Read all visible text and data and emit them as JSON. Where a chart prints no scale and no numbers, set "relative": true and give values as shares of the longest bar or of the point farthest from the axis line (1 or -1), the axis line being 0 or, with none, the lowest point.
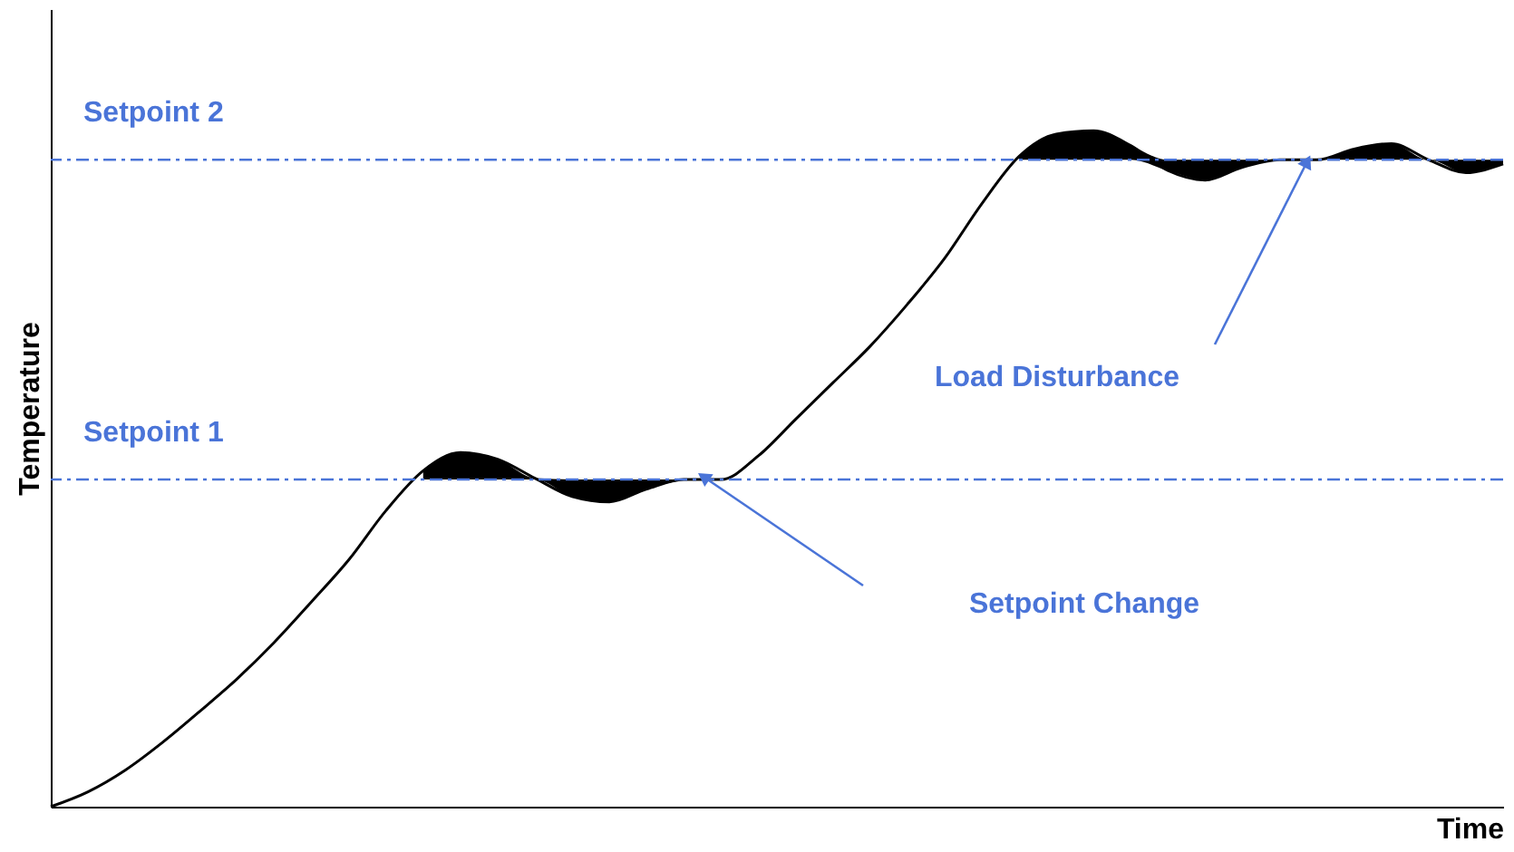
{
  "chart_data": {
    "type": "line",
    "relative": true,
    "xlabel": "Time",
    "ylabel": "Temperature",
    "categories": [
      null,
      null,
      null,
      null,
      null,
      null,
      null,
      null,
      null,
      null,
      null,
      null,
      null,
      null,
      null,
      null,
      null,
      null,
      null,
      null,
      null,
      null,
      null,
      null,
      null,
      null,
      null,
      null,
      null,
      null,
      null,
      null,
      null,
      null,
      null,
      null,
      null,
      null,
      null,
      null
    ],
    "series": [
      {
        "color": "#000000",
        "values": [
          0,
          0.022,
          0.054,
          0.095,
          0.141,
          0.189,
          0.243,
          0.303,
          0.365,
          0.438,
          0.497,
          0.524,
          0.514,
          0.486,
          0.459,
          0.451,
          0.47,
          0.484,
          0.484,
          0.519,
          0.573,
          0.627,
          0.681,
          0.743,
          0.811,
          0.892,
          0.962,
          0.995,
          1,
          0.978,
          0.941,
          0.927,
          0.946,
          0.957,
          0.957,
          0.973,
          0.981,
          0.957,
          0.938,
          0.951
        ],
        "lower": [
          null,
          null,
          null,
          null,
          null,
          null,
          null,
          null,
          null,
          null,
          0.484,
          0.484,
          0.484,
          0.484,
          0.459,
          0.451,
          0.47,
          0.484,
          null,
          null,
          null,
          null,
          null,
          null,
          null,
          null,
          0.957,
          0.957,
          0.957,
          0.957,
          0.941,
          0.927,
          0.946,
          0.957,
          0.957,
          0.957,
          0.957,
          0.957,
          0.938,
          0.951
        ],
        "upper": [
          null,
          null,
          null,
          null,
          null,
          null,
          null,
          null,
          null,
          null,
          0.497,
          0.524,
          0.514,
          0.486,
          0.484,
          0.484,
          0.484,
          0.484,
          null,
          null,
          null,
          null,
          null,
          null,
          null,
          null,
          0.962,
          0.995,
          1,
          0.978,
          0.957,
          0.957,
          0.957,
          0.957,
          0.957,
          0.973,
          0.981,
          0.957,
          0.957,
          0.957
        ]
      }
    ],
    "ref_lines": [
      {
        "axis": "y",
        "value": 0.484,
        "label": "Setpoint 1",
        "color": "#4a74d8",
        "line_style": "dashed"
      },
      {
        "axis": "y",
        "value": 0.957,
        "label": "Setpoint 2",
        "color": "#4a74d8",
        "line_style": "dashed"
      }
    ],
    "annotations": [
      "Setpoint Change",
      "Load Disturbance"
    ],
    "grid": false
  }
}
